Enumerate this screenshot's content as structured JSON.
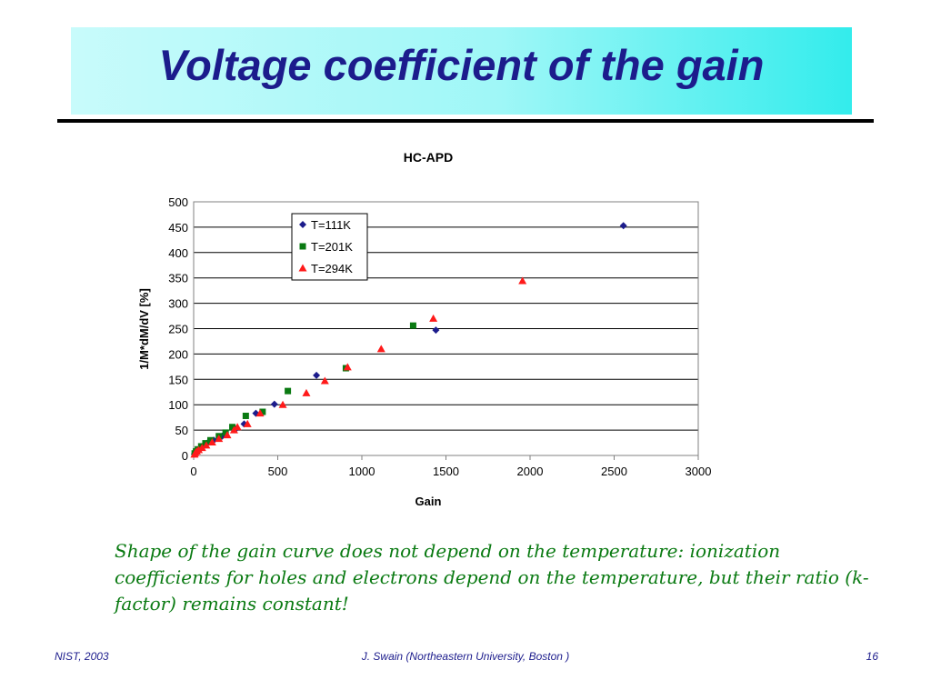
{
  "slide": {
    "title": "Voltage coefficient of the gain",
    "caption": "Shape of the gain curve does not depend on the temperature: ionization coefficients for holes and electrons depend on the temperature, but their ratio (k-factor) remains constant!",
    "footer_left": "NIST, 2003",
    "footer_center": "J. Swain (Northeastern University, Boston )",
    "footer_right": "16"
  },
  "colors": {
    "title": "#1c1c8c",
    "caption": "#0a7a12",
    "t111": "#1c1c8c",
    "t201": "#0a7a12",
    "t294": "#ff1a1a"
  },
  "chart_data": {
    "type": "scatter",
    "title": "HC-APD",
    "xlabel": "Gain",
    "ylabel": "1/M*dM/dV [%]",
    "xlim": [
      0,
      3000
    ],
    "ylim": [
      0,
      500
    ],
    "x_ticks": [
      0,
      500,
      1000,
      1500,
      2000,
      2500,
      3000
    ],
    "y_ticks": [
      0,
      50,
      100,
      150,
      200,
      250,
      300,
      350,
      400,
      450,
      500
    ],
    "grid": "horizontal",
    "legend_position": "top-left",
    "series": [
      {
        "name": "T=111K",
        "marker": "diamond",
        "color": "#1c1c8c",
        "points": [
          [
            5,
            3
          ],
          [
            12,
            6
          ],
          [
            20,
            9
          ],
          [
            35,
            13
          ],
          [
            55,
            18
          ],
          [
            80,
            24
          ],
          [
            120,
            30
          ],
          [
            170,
            38
          ],
          [
            250,
            52
          ],
          [
            300,
            62
          ],
          [
            370,
            83
          ],
          [
            480,
            101
          ],
          [
            730,
            158
          ],
          [
            1440,
            247
          ],
          [
            2555,
            453
          ]
        ]
      },
      {
        "name": "T=201K",
        "marker": "square",
        "color": "#0a7a12",
        "points": [
          [
            6,
            4
          ],
          [
            14,
            8
          ],
          [
            25,
            12
          ],
          [
            45,
            18
          ],
          [
            70,
            24
          ],
          [
            100,
            30
          ],
          [
            150,
            38
          ],
          [
            190,
            45
          ],
          [
            230,
            56
          ],
          [
            310,
            78
          ],
          [
            410,
            86
          ],
          [
            560,
            127
          ],
          [
            905,
            172
          ],
          [
            1305,
            256
          ]
        ]
      },
      {
        "name": "T=294K",
        "marker": "triangle",
        "color": "#ff1a1a",
        "points": [
          [
            5,
            2
          ],
          [
            10,
            5
          ],
          [
            18,
            8
          ],
          [
            30,
            11
          ],
          [
            50,
            15
          ],
          [
            75,
            20
          ],
          [
            110,
            26
          ],
          [
            150,
            33
          ],
          [
            200,
            40
          ],
          [
            240,
            50
          ],
          [
            260,
            56
          ],
          [
            320,
            62
          ],
          [
            395,
            83
          ],
          [
            530,
            100
          ],
          [
            670,
            123
          ],
          [
            780,
            147
          ],
          [
            915,
            174
          ],
          [
            1115,
            210
          ],
          [
            1425,
            270
          ],
          [
            1955,
            344
          ]
        ]
      }
    ]
  }
}
